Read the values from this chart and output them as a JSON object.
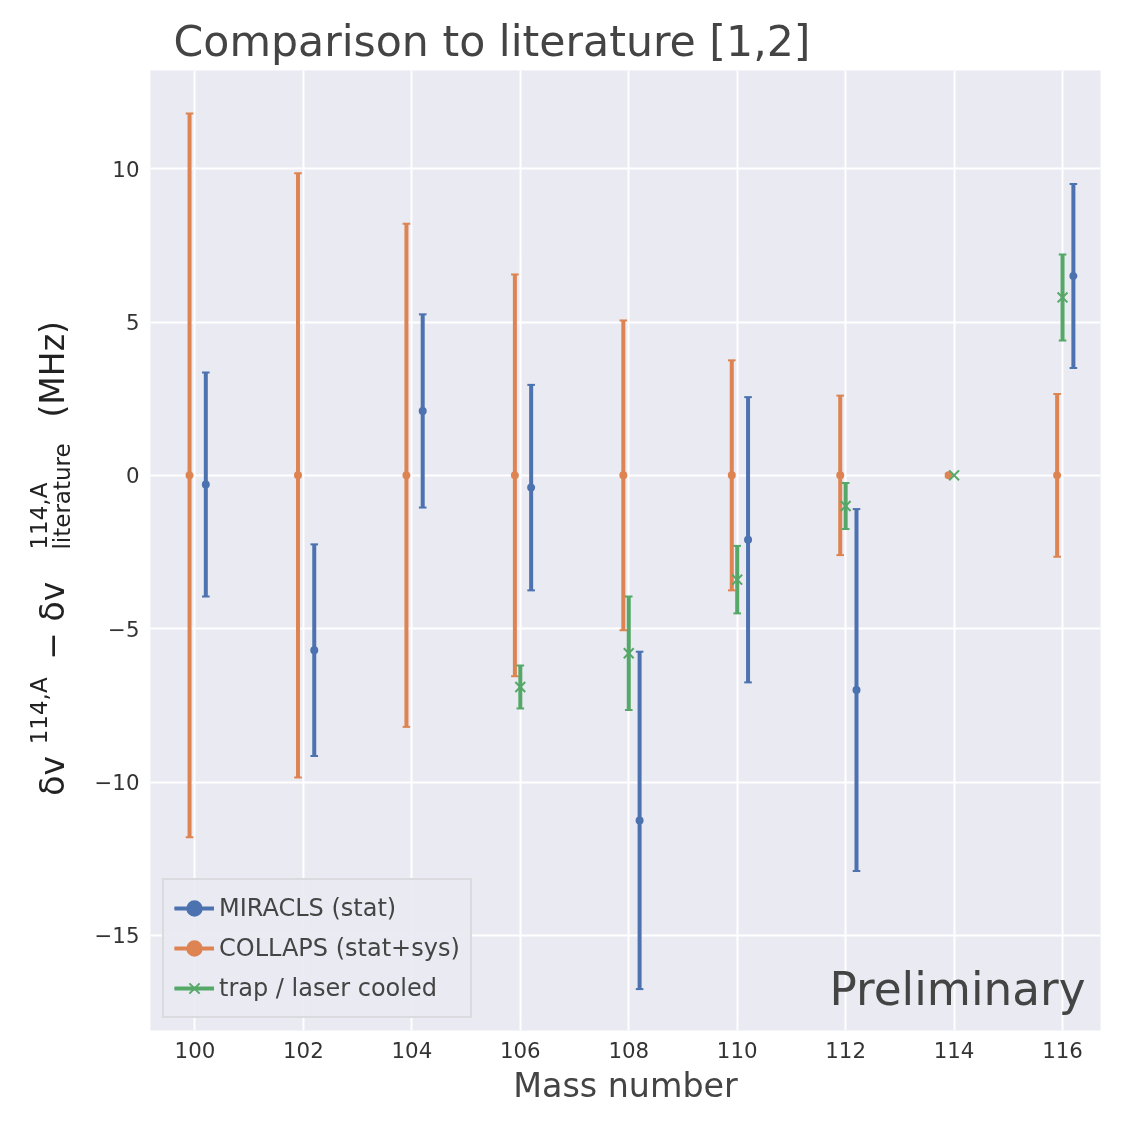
{
  "chart_data": {
    "type": "scatter",
    "title": "Comparison to literature [1,2]",
    "xlabel": "Mass number",
    "ylabel": "δv$^{114,A}$ − δv$^{114,A}$$_{literature}$ (MHz)",
    "xlim": [
      99.18,
      116.7
    ],
    "ylim": [
      -18.1,
      13.2
    ],
    "xticks": [
      100,
      102,
      104,
      106,
      108,
      110,
      112,
      114,
      116
    ],
    "yticks": [
      -15,
      -10,
      -5,
      0,
      5,
      10
    ],
    "grid": true,
    "legend": "bottom left",
    "series": [
      {
        "name": "MIRACLS (stat)",
        "color": "#4c72b0",
        "marker": "circle",
        "x": [
          100.2,
          102.2,
          104.2,
          106.2,
          108.2,
          110.2,
          112.2,
          116.2
        ],
        "values": [
          -0.3,
          -5.7,
          2.1,
          -0.4,
          -11.25,
          -2.1,
          -7.0,
          6.5
        ],
        "errors": [
          3.65,
          3.45,
          3.15,
          3.35,
          5.5,
          4.65,
          5.9,
          3.0
        ]
      },
      {
        "name": "COLLAPS (stat+sys)",
        "color": "#dd8452",
        "marker": "circle",
        "x": [
          99.9,
          101.9,
          103.9,
          105.9,
          107.9,
          109.9,
          111.9,
          113.9,
          115.9
        ],
        "values": [
          0,
          0,
          0,
          0,
          0,
          0,
          0,
          0,
          0
        ],
        "errors": [
          11.8,
          9.85,
          8.2,
          6.55,
          5.05,
          3.75,
          2.6,
          0.05,
          2.65
        ]
      },
      {
        "name": "trap / laser cooled",
        "color": "#55a868",
        "marker": "cross",
        "x": [
          106,
          108,
          110,
          112,
          114,
          116
        ],
        "values": [
          -6.9,
          -5.8,
          -3.4,
          -1.0,
          0,
          5.8
        ],
        "errors": [
          0.7,
          1.85,
          1.1,
          0.75,
          null,
          1.4
        ]
      }
    ],
    "annotations": [
      "Preliminary"
    ]
  }
}
